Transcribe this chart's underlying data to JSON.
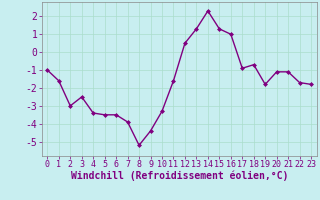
{
  "x": [
    0,
    1,
    2,
    3,
    4,
    5,
    6,
    7,
    8,
    9,
    10,
    11,
    12,
    13,
    14,
    15,
    16,
    17,
    18,
    19,
    20,
    21,
    22,
    23
  ],
  "y": [
    -1,
    -1.6,
    -3.0,
    -2.5,
    -3.4,
    -3.5,
    -3.5,
    -3.9,
    -5.2,
    -4.4,
    -3.3,
    -1.6,
    0.5,
    1.3,
    2.3,
    1.3,
    1.0,
    -0.9,
    -0.7,
    -1.8,
    -1.1,
    -1.1,
    -1.7,
    -1.8
  ],
  "line_color": "#800080",
  "marker": "D",
  "marker_size": 2.0,
  "line_width": 1.0,
  "bg_color": "#c8eef0",
  "grid_color": "#aaddcc",
  "xlabel": "Windchill (Refroidissement éolien,°C)",
  "xlabel_fontsize": 7,
  "tick_color": "#800080",
  "ytick_fontsize": 7,
  "xtick_fontsize": 6,
  "xlim": [
    -0.5,
    23.5
  ],
  "ylim": [
    -5.8,
    2.8
  ],
  "yticks": [
    -5,
    -4,
    -3,
    -2,
    -1,
    0,
    1,
    2
  ],
  "xticks": [
    0,
    1,
    2,
    3,
    4,
    5,
    6,
    7,
    8,
    9,
    10,
    11,
    12,
    13,
    14,
    15,
    16,
    17,
    18,
    19,
    20,
    21,
    22,
    23
  ]
}
